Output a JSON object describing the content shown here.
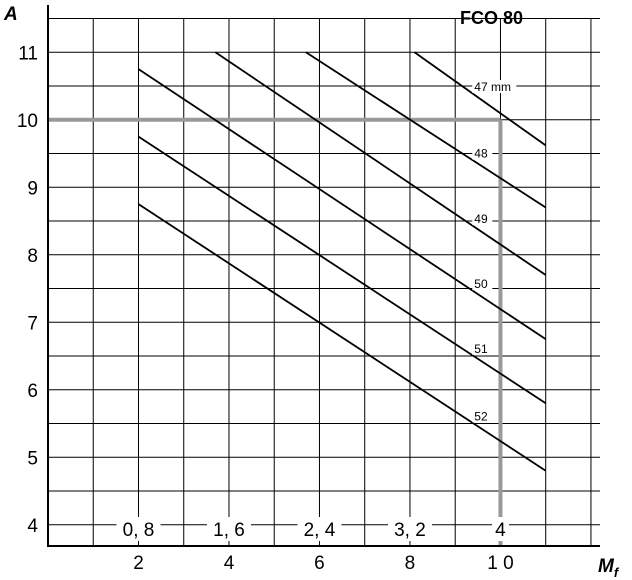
{
  "chart_data": {
    "type": "line",
    "title": "FCO 80",
    "ylabel": "A",
    "xlabel": "M",
    "xlabel_subscript": "f",
    "xlim": [
      0,
      12.2
    ],
    "ylim": [
      3.7,
      11.7
    ],
    "x_ticks": [
      {
        "value": 2,
        "label": "2"
      },
      {
        "value": 4,
        "label": "4"
      },
      {
        "value": 6,
        "label": "6"
      },
      {
        "value": 8,
        "label": "8"
      },
      {
        "value": 10,
        "label": "1 0"
      }
    ],
    "x_ticks_secondary": [
      {
        "value": 2,
        "label": "0, 8"
      },
      {
        "value": 4,
        "label": "1, 6"
      },
      {
        "value": 6,
        "label": "2, 4"
      },
      {
        "value": 8,
        "label": "3, 2"
      },
      {
        "value": 10,
        "label": "4"
      }
    ],
    "y_ticks": [
      4,
      5,
      6,
      7,
      8,
      9,
      10,
      11
    ],
    "grid": true,
    "series": [
      {
        "name": "47 mm",
        "x": [
          8.1,
          11.0
        ],
        "y": [
          11.0,
          9.62
        ]
      },
      {
        "name": "48",
        "x": [
          5.7,
          11.0
        ],
        "y": [
          11.0,
          8.7
        ]
      },
      {
        "name": "49",
        "x": [
          3.7,
          11.0
        ],
        "y": [
          11.0,
          7.7
        ]
      },
      {
        "name": "50",
        "x": [
          2.0,
          11.0
        ],
        "y": [
          10.75,
          6.75
        ]
      },
      {
        "name": "51",
        "x": [
          2.0,
          11.0
        ],
        "y": [
          9.75,
          5.8
        ]
      },
      {
        "name": "52",
        "x": [
          2.0,
          11.0
        ],
        "y": [
          8.75,
          4.8
        ]
      }
    ],
    "series_label_x": 9.4,
    "reference": {
      "x": 10,
      "y": 10,
      "color": "#999999"
    }
  }
}
